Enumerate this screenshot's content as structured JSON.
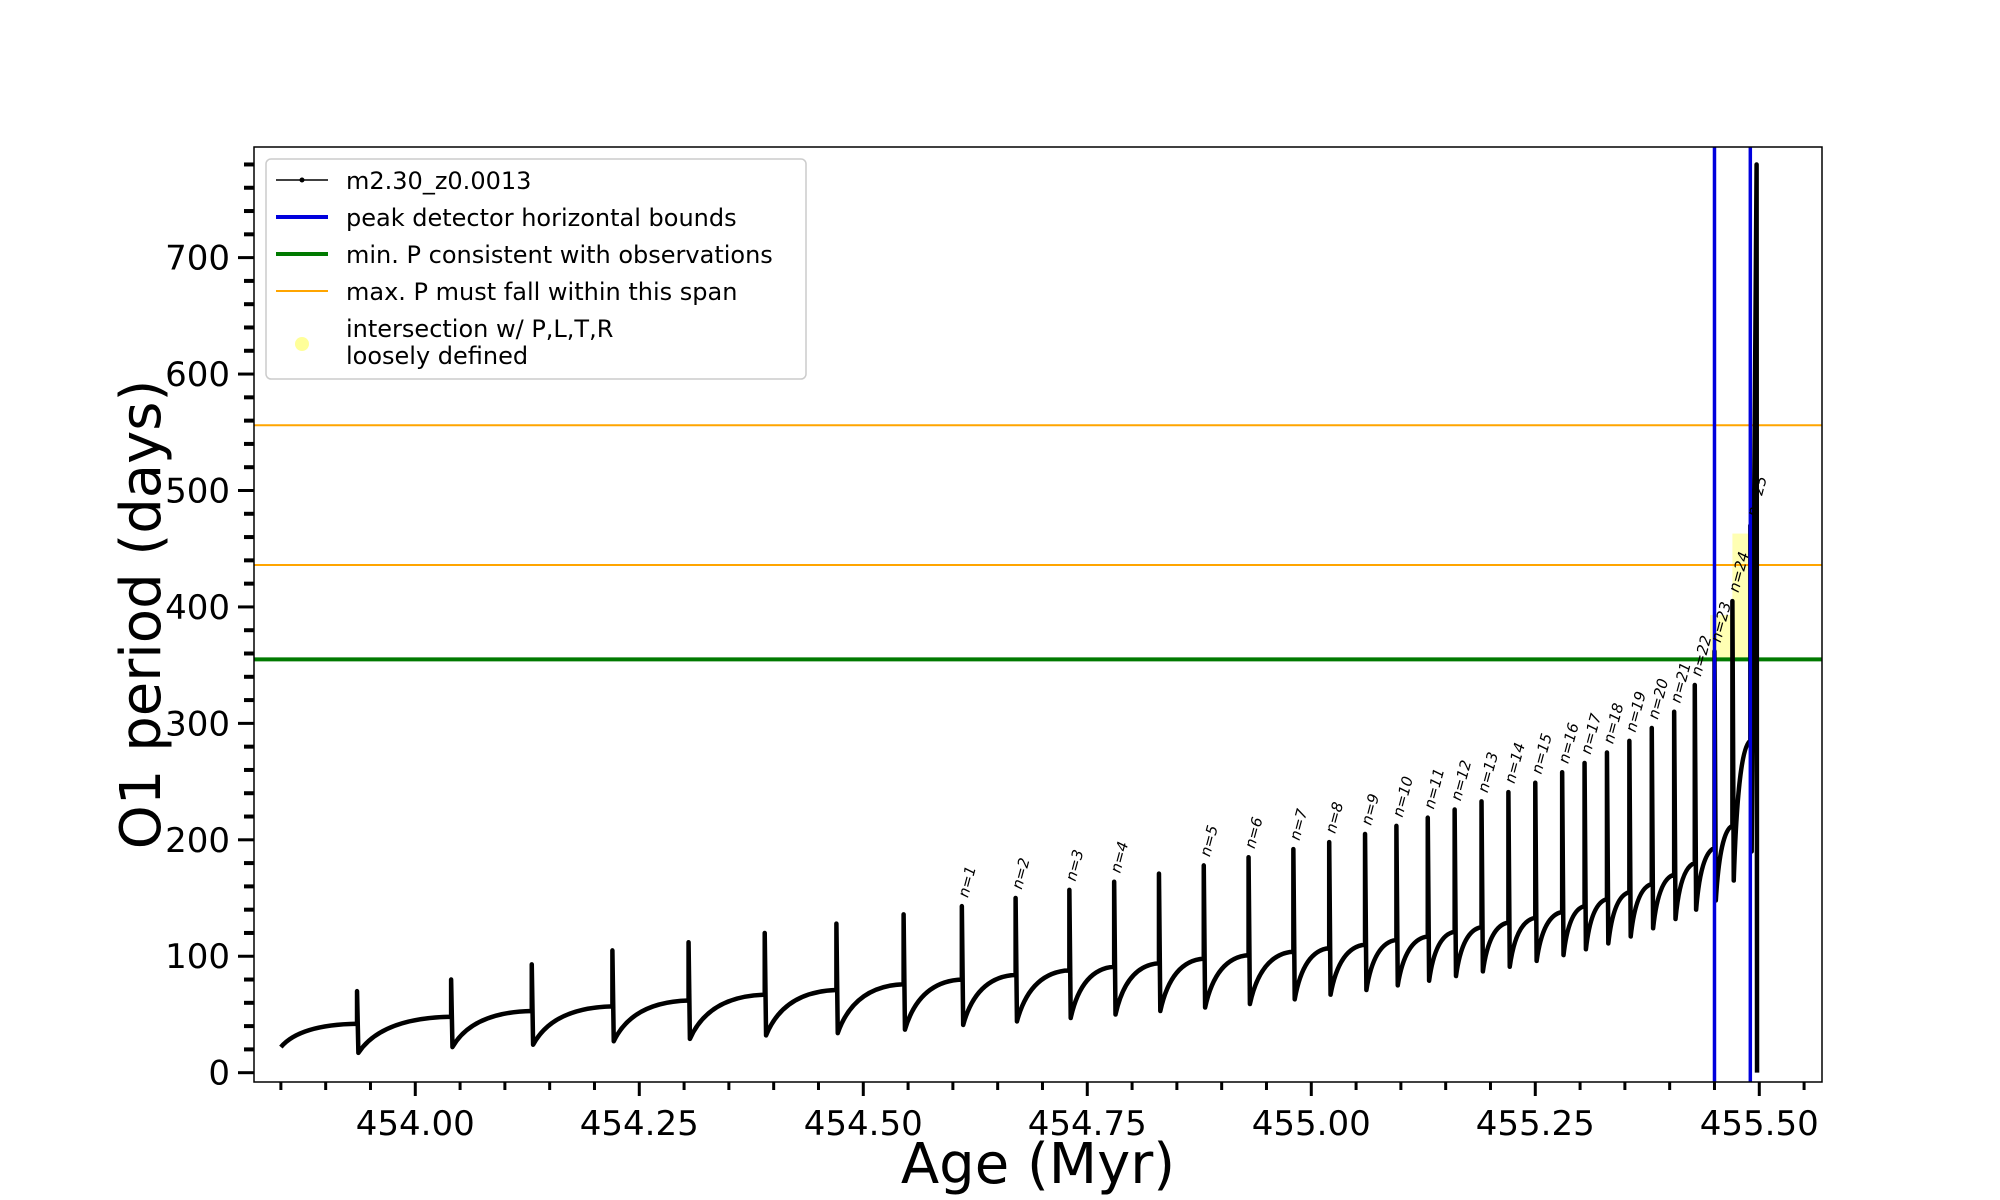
{
  "chart_data": {
    "type": "line",
    "title": "",
    "xlabel": "Age (Myr)",
    "ylabel": "O1 period (days)",
    "xlim": [
      453.82,
      455.57
    ],
    "ylim": [
      -8,
      795
    ],
    "xticks": [
      454.0,
      454.25,
      454.5,
      454.75,
      455.0,
      455.25,
      455.5
    ],
    "xtick_labels": [
      "454.00",
      "454.25",
      "454.50",
      "454.75",
      "455.00",
      "455.25",
      "455.50"
    ],
    "yticks": [
      0,
      100,
      200,
      300,
      400,
      500,
      600,
      700
    ],
    "ytick_labels": [
      "0",
      "100",
      "200",
      "300",
      "400",
      "500",
      "600",
      "700"
    ],
    "grid": false,
    "legend": {
      "placement": "upper-left",
      "entries": [
        {
          "label": "m2.30_z0.0013",
          "color": "#000000",
          "style": "line-marker"
        },
        {
          "label": "peak detector horizontal bounds",
          "color": "#0000dd",
          "style": "line"
        },
        {
          "label": "min. P consistent with observations",
          "color": "#007a00",
          "style": "line"
        },
        {
          "label": "max. P must fall within this span",
          "color": "#ffa500",
          "style": "thin-line"
        },
        {
          "label": "intersection w/ P,L,T,R",
          "label2": "loosely defined",
          "color": "#ffff99",
          "style": "marker"
        }
      ]
    },
    "series": [
      {
        "name": "m2.30_z0.0013",
        "color": "#000000",
        "start": {
          "x": 453.85,
          "y": 22
        },
        "pulses": [
          {
            "x": 453.935,
            "base": 42,
            "peak": 70,
            "min": 17,
            "label": ""
          },
          {
            "x": 454.04,
            "base": 48,
            "peak": 80,
            "min": 22,
            "label": ""
          },
          {
            "x": 454.13,
            "base": 53,
            "peak": 93,
            "min": 24,
            "label": ""
          },
          {
            "x": 454.22,
            "base": 57,
            "peak": 105,
            "min": 27,
            "label": ""
          },
          {
            "x": 454.305,
            "base": 62,
            "peak": 112,
            "min": 29,
            "label": ""
          },
          {
            "x": 454.39,
            "base": 67,
            "peak": 120,
            "min": 32,
            "label": ""
          },
          {
            "x": 454.47,
            "base": 71,
            "peak": 128,
            "min": 34,
            "label": ""
          },
          {
            "x": 454.545,
            "base": 76,
            "peak": 136,
            "min": 37,
            "label": ""
          },
          {
            "x": 454.61,
            "base": 80,
            "peak": 143,
            "min": 41,
            "label": "n=1"
          },
          {
            "x": 454.67,
            "base": 84,
            "peak": 150,
            "min": 44,
            "label": "n=2"
          },
          {
            "x": 454.73,
            "base": 88,
            "peak": 157,
            "min": 47,
            "label": "n=3"
          },
          {
            "x": 454.78,
            "base": 91,
            "peak": 164,
            "min": 50,
            "label": "n=4"
          },
          {
            "x": 454.83,
            "base": 94,
            "peak": 171,
            "min": 53,
            "label": ""
          },
          {
            "x": 454.88,
            "base": 98,
            "peak": 178,
            "min": 56,
            "label": "n=5"
          },
          {
            "x": 454.93,
            "base": 101,
            "peak": 185,
            "min": 59,
            "label": "n=6"
          },
          {
            "x": 454.98,
            "base": 104,
            "peak": 192,
            "min": 63,
            "label": "n=7"
          },
          {
            "x": 455.02,
            "base": 107,
            "peak": 198,
            "min": 67,
            "label": "n=8"
          },
          {
            "x": 455.06,
            "base": 110,
            "peak": 205,
            "min": 71,
            "label": "n=9"
          },
          {
            "x": 455.095,
            "base": 114,
            "peak": 212,
            "min": 75,
            "label": "n=10"
          },
          {
            "x": 455.13,
            "base": 117,
            "peak": 219,
            "min": 79,
            "label": "n=11"
          },
          {
            "x": 455.16,
            "base": 121,
            "peak": 226,
            "min": 83,
            "label": "n=12"
          },
          {
            "x": 455.19,
            "base": 125,
            "peak": 233,
            "min": 87,
            "label": "n=13"
          },
          {
            "x": 455.22,
            "base": 129,
            "peak": 241,
            "min": 91,
            "label": "n=14"
          },
          {
            "x": 455.25,
            "base": 133,
            "peak": 249,
            "min": 96,
            "label": "n=15"
          },
          {
            "x": 455.28,
            "base": 138,
            "peak": 258,
            "min": 101,
            "label": "n=16"
          },
          {
            "x": 455.305,
            "base": 143,
            "peak": 266,
            "min": 106,
            "label": "n=17"
          },
          {
            "x": 455.33,
            "base": 149,
            "peak": 275,
            "min": 111,
            "label": "n=18"
          },
          {
            "x": 455.355,
            "base": 155,
            "peak": 285,
            "min": 117,
            "label": "n=19"
          },
          {
            "x": 455.38,
            "base": 162,
            "peak": 296,
            "min": 124,
            "label": "n=20"
          },
          {
            "x": 455.405,
            "base": 170,
            "peak": 310,
            "min": 132,
            "label": "n=21"
          },
          {
            "x": 455.428,
            "base": 180,
            "peak": 333,
            "min": 140,
            "label": "n=22"
          },
          {
            "x": 455.45,
            "base": 193,
            "peak": 362,
            "min": 148,
            "label": "n=23"
          },
          {
            "x": 455.47,
            "base": 212,
            "peak": 405,
            "min": 165,
            "label": "n=24"
          },
          {
            "x": 455.49,
            "base": 285,
            "peak": 470,
            "min": 190,
            "label": "n=25"
          }
        ],
        "final_spike": {
          "x": 455.497,
          "peak": 780,
          "min": 0
        }
      }
    ],
    "horizontal_lines": [
      {
        "y": 556,
        "color": "#ffa500",
        "meaning": "max. P must fall within this span"
      },
      {
        "y": 436,
        "color": "#ffa500",
        "meaning": "max. P must fall within this span"
      },
      {
        "y": 355,
        "color": "#007a00",
        "meaning": "min. P consistent with observations"
      }
    ],
    "vertical_lines": [
      {
        "x": 455.45,
        "color": "#0000dd",
        "meaning": "peak detector horizontal bounds"
      },
      {
        "x": 455.49,
        "color": "#0000dd",
        "meaning": "peak detector horizontal bounds"
      }
    ],
    "highlight_regions": [
      {
        "x": [
          455.445,
          455.47
        ],
        "y": [
          355,
          393
        ],
        "color": "#ffff99"
      },
      {
        "x": [
          455.47,
          455.492
        ],
        "y": [
          355,
          463
        ],
        "color": "#ffff99"
      }
    ]
  }
}
